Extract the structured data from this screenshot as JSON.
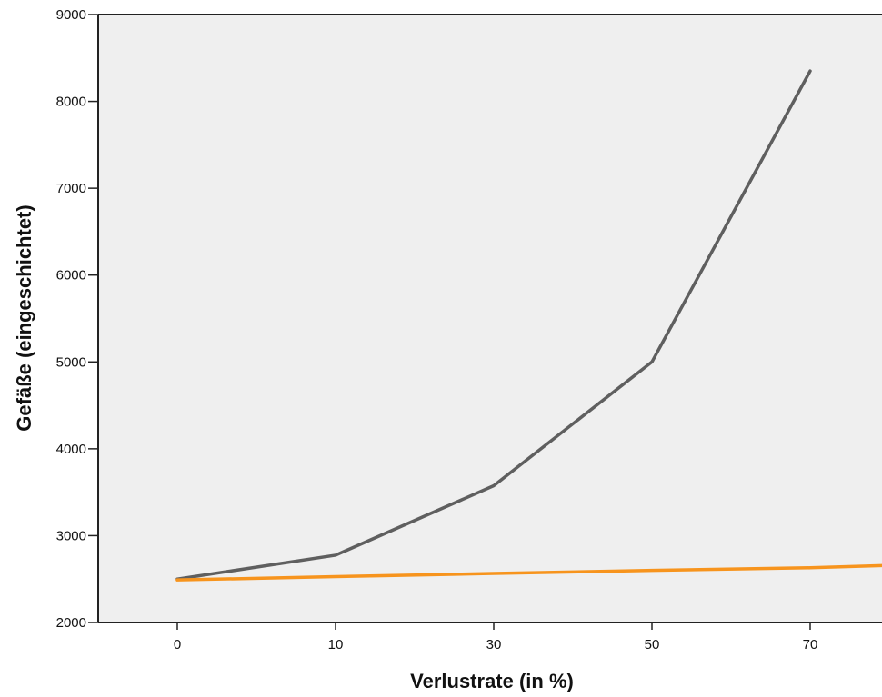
{
  "chart_data": {
    "type": "line",
    "xlabel": "Verlustrate (in %)",
    "ylabel": "Gefäße (eingeschichtet)",
    "categories": [
      "0",
      "10",
      "30",
      "50",
      "70"
    ],
    "ylim": [
      2000,
      9000
    ],
    "yticks": [
      2000,
      3000,
      4000,
      5000,
      6000,
      7000,
      8000,
      9000
    ],
    "grid": false,
    "series": [
      {
        "color": "#5f5f5f",
        "values": [
          2500,
          2775,
          3575,
          5000,
          8350
        ]
      },
      {
        "color": "#f7941d",
        "values": [
          2490,
          2528,
          2565,
          2600,
          2630
        ],
        "extends_to_right_edge_value": 2655
      }
    ]
  }
}
